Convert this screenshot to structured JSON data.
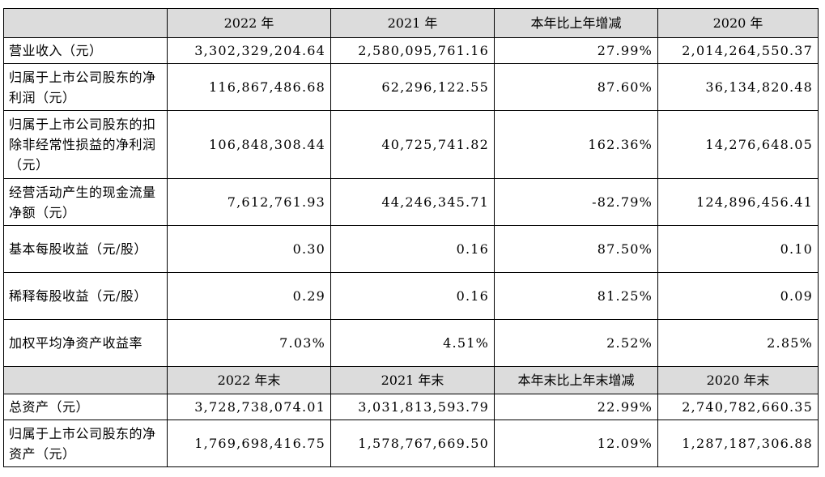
{
  "header1": [
    "",
    "2022 年",
    "2021 年",
    "本年比上年增减",
    "2020 年"
  ],
  "rows1": [
    {
      "label": "营业收入（元）",
      "values": [
        "3,302,329,204.64",
        "2,580,095,761.16",
        "27.99%",
        "2,014,264,550.37"
      ]
    },
    {
      "label": "归属于上市公司股东的净利润（元）",
      "values": [
        "116,867,486.68",
        "62,296,122.55",
        "87.60%",
        "36,134,820.48"
      ]
    },
    {
      "label": "归属于上市公司股东的扣除非经常性损益的净利润（元）",
      "values": [
        "106,848,308.44",
        "40,725,741.82",
        "162.36%",
        "14,276,648.05"
      ]
    },
    {
      "label": "经营活动产生的现金流量净额（元）",
      "values": [
        "7,612,761.93",
        "44,246,345.71",
        "-82.79%",
        "124,896,456.41"
      ]
    },
    {
      "label": "基本每股收益（元/股）",
      "values": [
        "0.30",
        "0.16",
        "87.50%",
        "0.10"
      ]
    },
    {
      "label": "稀释每股收益（元/股）",
      "values": [
        "0.29",
        "0.16",
        "81.25%",
        "0.09"
      ]
    },
    {
      "label": "加权平均净资产收益率",
      "values": [
        "7.03%",
        "4.51%",
        "2.52%",
        "2.85%"
      ]
    }
  ],
  "header2": [
    "",
    "2022 年末",
    "2021 年末",
    "本年末比上年末增减",
    "2020 年末"
  ],
  "rows2": [
    {
      "label": "总资产（元）",
      "values": [
        "3,728,738,074.01",
        "3,031,813,593.79",
        "22.99%",
        "2,740,782,660.35"
      ]
    },
    {
      "label": "归属于上市公司股东的净资产（元）",
      "values": [
        "1,769,698,416.75",
        "1,578,767,669.50",
        "12.09%",
        "1,287,187,306.88"
      ]
    }
  ]
}
